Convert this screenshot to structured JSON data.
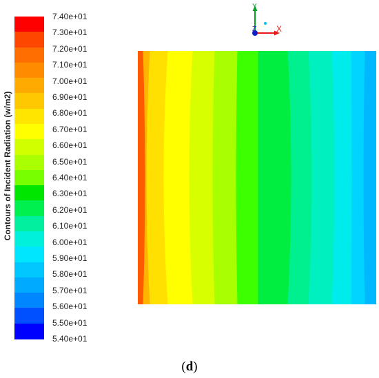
{
  "legend": {
    "title": "Contours of Incident Radiation (w/m2)",
    "labels": [
      "7.40e+01",
      "7.30e+01",
      "7.20e+01",
      "7.10e+01",
      "7.00e+01",
      "6.90e+01",
      "6.80e+01",
      "6.70e+01",
      "6.60e+01",
      "6.50e+01",
      "6.40e+01",
      "6.30e+01",
      "6.20e+01",
      "6.10e+01",
      "6.00e+01",
      "5.90e+01",
      "5.80e+01",
      "5.70e+01",
      "5.60e+01",
      "5.50e+01",
      "5.40e+01"
    ],
    "colors": [
      "#ff0000",
      "#ff4600",
      "#ff6e00",
      "#ff8c00",
      "#ffaa00",
      "#ffc800",
      "#ffe600",
      "#ffff00",
      "#d2ff00",
      "#aaff00",
      "#78ff00",
      "#00e600",
      "#00f050",
      "#00f0a0",
      "#00f0dc",
      "#00e6ff",
      "#00c8ff",
      "#00aaff",
      "#0087ff",
      "#0050ff",
      "#0000ff"
    ]
  },
  "triad": {
    "y_label": "Y",
    "z_label": "Z",
    "x_label": "X"
  },
  "contour": {
    "band_colors": [
      "#ff5a00",
      "#ffb400",
      "#ffe000",
      "#ffff00",
      "#d8ff00",
      "#a8ff00",
      "#3cff00",
      "#00ee40",
      "#00f090",
      "#00f0c0",
      "#00ecec",
      "#00d4ff",
      "#00b8ff"
    ]
  },
  "caption": {
    "open": "(",
    "letter": "d",
    "close": ")"
  }
}
